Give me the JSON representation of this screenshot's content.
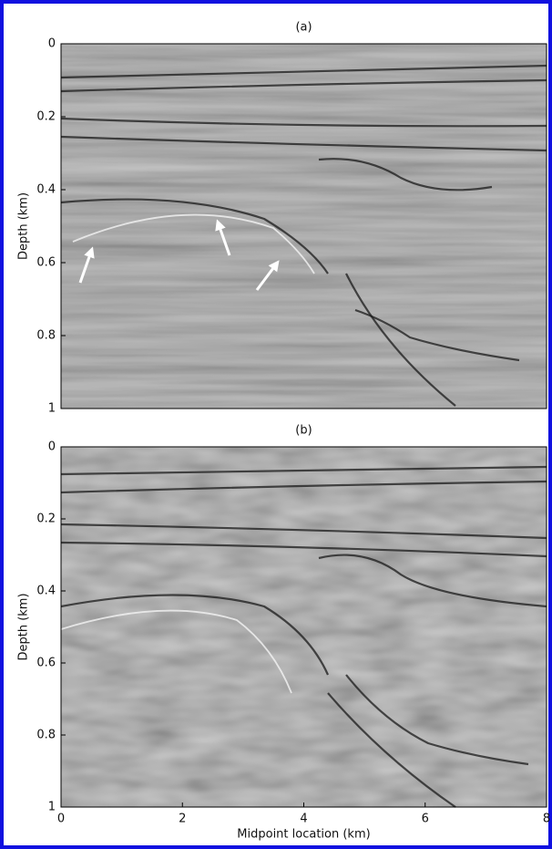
{
  "chart_data": [
    {
      "type": "image",
      "title": "(a)",
      "ylabel": "Depth (km)",
      "xlim": [
        0,
        8
      ],
      "ylim": [
        0,
        1
      ],
      "yticks": [
        0,
        0.2,
        0.4,
        0.6,
        0.8,
        1
      ]
    },
    {
      "type": "image",
      "title": "(b)",
      "ylabel": "Depth (km)",
      "xlabel": "Midpoint location (km)",
      "xlim": [
        0,
        8
      ],
      "ylim": [
        0,
        1
      ],
      "yticks": [
        0,
        0.2,
        0.4,
        0.6,
        0.8,
        1
      ],
      "xticks": [
        0,
        2,
        4,
        6,
        8
      ]
    }
  ]
}
